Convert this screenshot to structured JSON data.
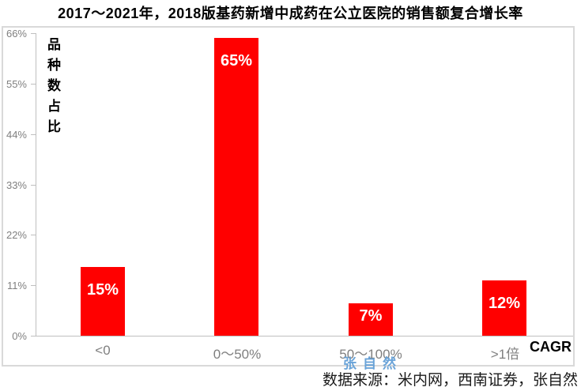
{
  "title": "2017～2021年，2018版基药新增中成药在公立医院的销售额复合增长率",
  "chart_data": {
    "type": "bar",
    "categories": [
      "<0",
      "0～50%",
      "50～100%",
      ">1倍"
    ],
    "values": [
      15,
      65,
      7,
      12
    ],
    "value_labels": [
      "15%",
      "65%",
      "7%",
      "12%"
    ],
    "title": "2017～2021年，2018版基药新增中成药在公立医院的销售额复合增长率",
    "xlabel": "CAGR",
    "ylabel": "品种数占比",
    "ylim": [
      0,
      66
    ],
    "ytick_step": 11,
    "yticks": [
      "66%",
      "55%",
      "44%",
      "33%",
      "22%",
      "11%",
      "0%"
    ],
    "bar_color": "#ff0000",
    "value_label_color": "#ffffff",
    "axis_color": "#bfbfbf",
    "tick_label_color": "#7f7f7f",
    "grid": false,
    "legend": false
  },
  "watermark": "张自然",
  "source_note": "数据来源：米内网，西南证券，张自然"
}
